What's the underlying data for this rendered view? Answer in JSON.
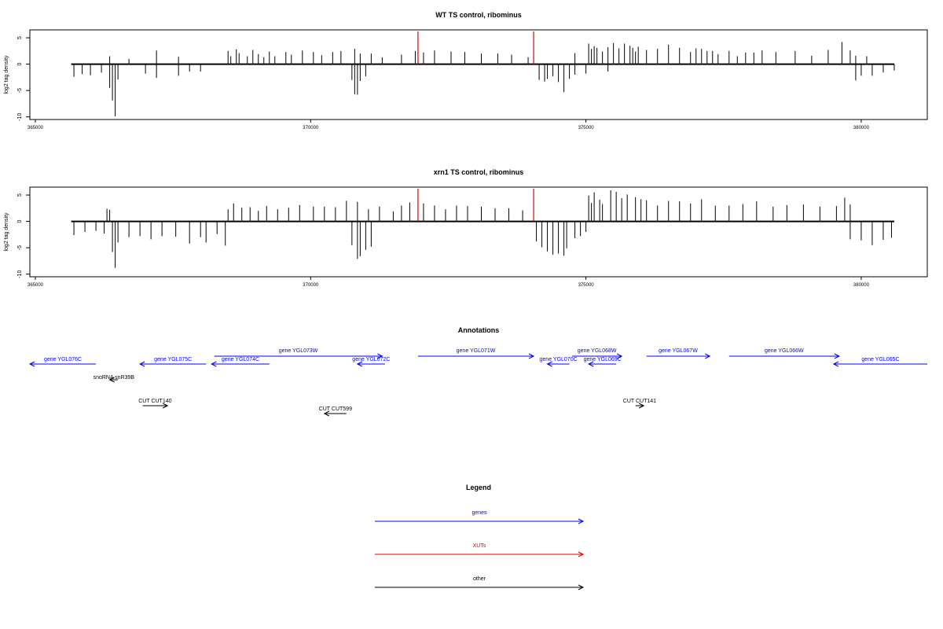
{
  "chart_data": [
    {
      "type": "bar",
      "title": "WT TS control, ribominus",
      "ylabel": "log2 tag density",
      "xlabel": "",
      "xlim": [
        364900,
        381200
      ],
      "ylim": [
        -10.5,
        6.5
      ],
      "x_ticks": [
        365000,
        370000,
        375000,
        380000
      ],
      "x_tick_labels": [
        "365000",
        "370000",
        "375000",
        "380000"
      ],
      "y_ticks": [
        5,
        0,
        -5,
        -10
      ],
      "y_tick_labels": [
        "5",
        "0",
        "-5",
        "-10"
      ],
      "baseline_range": [
        365650,
        380600
      ],
      "markers": {
        "color": "#e00000",
        "x": [
          371950,
          374050
        ],
        "height": 6.2
      },
      "colors": {
        "bars": "#000000",
        "markers": "#e00000"
      },
      "grid": false,
      "series": [
        {
          "strand": "plus",
          "x": [
            366350,
            366700,
            367200,
            367600,
            368500,
            368550,
            368650,
            368700,
            368850,
            368950,
            369050,
            369150,
            369250,
            369350,
            369550,
            369650,
            369850,
            370050,
            370200,
            370400,
            370550,
            370800,
            370900,
            371100,
            371300,
            371650,
            371900,
            372050,
            372250,
            372550,
            372800,
            373100,
            373400,
            373650,
            373950,
            374800,
            375050,
            375100,
            375150,
            375200,
            375300,
            375400,
            375500,
            375600,
            375700,
            375800,
            375850,
            375900,
            375950,
            376100,
            376300,
            376500,
            376700,
            376900,
            377000,
            377100,
            377200,
            377300,
            377400,
            377600,
            377750,
            377900,
            378050,
            378200,
            378450,
            378800,
            379100,
            379400,
            379650,
            379800,
            379900,
            380100
          ],
          "values": [
            1.5,
            1.0,
            2.6,
            1.4,
            2.5,
            1.5,
            2.8,
            2.1,
            1.5,
            2.7,
            1.9,
            1.3,
            2.4,
            1.5,
            2.3,
            1.8,
            2.6,
            2.3,
            1.7,
            2.3,
            2.5,
            2.9,
            2.0,
            2.0,
            1.3,
            1.8,
            2.5,
            2.2,
            2.6,
            2.4,
            2.3,
            2.0,
            2.0,
            1.8,
            1.3,
            2.1,
            3.9,
            2.9,
            3.4,
            3.1,
            2.4,
            3.2,
            4.0,
            3.0,
            3.9,
            3.5,
            3.1,
            2.4,
            3.3,
            2.7,
            2.9,
            3.7,
            3.1,
            2.3,
            3.0,
            2.9,
            2.5,
            2.5,
            1.9,
            2.5,
            1.5,
            2.2,
            2.2,
            2.6,
            2.3,
            2.5,
            1.6,
            2.7,
            4.2,
            2.6,
            1.6,
            1.5
          ]
        },
        {
          "strand": "minus",
          "x": [
            365700,
            365850,
            366000,
            366200,
            366350,
            366400,
            366450,
            366500,
            367000,
            367200,
            367600,
            367800,
            368000,
            370750,
            370800,
            370850,
            370900,
            371000,
            374150,
            374250,
            374300,
            374400,
            374500,
            374600,
            374700,
            374800,
            375000,
            375400,
            379900,
            380000,
            380200,
            380400,
            380600
          ],
          "values": [
            -2.4,
            -1.9,
            -2.1,
            -1.6,
            -4.5,
            -6.9,
            -9.9,
            -2.9,
            -1.8,
            -2.6,
            -2.2,
            -1.4,
            -1.4,
            -3.0,
            -5.7,
            -5.8,
            -3.2,
            -2.3,
            -3.0,
            -3.3,
            -2.8,
            -2.3,
            -3.4,
            -5.3,
            -2.8,
            -2.0,
            -1.8,
            -1.4,
            -3.1,
            -2.2,
            -2.2,
            -1.6,
            -1.2
          ]
        }
      ]
    },
    {
      "type": "bar",
      "title": "xrn1 TS control, ribominus",
      "ylabel": "log2 tag density",
      "xlabel": "",
      "xlim": [
        364900,
        381200
      ],
      "ylim": [
        -10.5,
        6.5
      ],
      "x_ticks": [
        365000,
        370000,
        375000,
        380000
      ],
      "x_tick_labels": [
        "365000",
        "370000",
        "375000",
        "380000"
      ],
      "y_ticks": [
        5,
        0,
        -5,
        -10
      ],
      "y_tick_labels": [
        "5",
        "0",
        "-5",
        "-10"
      ],
      "baseline_range": [
        365650,
        380600
      ],
      "markers": {
        "color": "#e00000",
        "x": [
          371950,
          374050
        ],
        "height": 6.2
      },
      "colors": {
        "bars": "#000000",
        "markers": "#e00000"
      },
      "grid": false,
      "series": [
        {
          "strand": "plus",
          "x": [
            366300,
            366350,
            368500,
            368600,
            368750,
            368900,
            369050,
            369200,
            369400,
            369600,
            369800,
            370050,
            370250,
            370450,
            370650,
            370850,
            371050,
            371250,
            371500,
            371650,
            371800,
            372050,
            372250,
            372450,
            372650,
            372850,
            373100,
            373350,
            373600,
            373850,
            375050,
            375100,
            375150,
            375250,
            375300,
            375450,
            375550,
            375650,
            375750,
            375900,
            376000,
            376100,
            376300,
            376500,
            376700,
            376900,
            377100,
            377350,
            377600,
            377850,
            378100,
            378400,
            378650,
            378950,
            379250,
            379550,
            379700,
            379800
          ],
          "values": [
            2.4,
            2.2,
            2.3,
            3.4,
            2.6,
            2.7,
            2.0,
            2.9,
            2.3,
            2.6,
            3.1,
            2.8,
            2.8,
            2.7,
            3.9,
            3.7,
            2.3,
            2.8,
            1.9,
            3.0,
            3.6,
            3.4,
            3.0,
            2.3,
            3.0,
            2.9,
            2.8,
            2.5,
            2.5,
            2.1,
            4.9,
            3.5,
            5.5,
            4.1,
            3.3,
            5.9,
            5.6,
            4.4,
            5.1,
            4.6,
            4.2,
            4.0,
            3.0,
            3.9,
            3.8,
            3.4,
            4.2,
            3.0,
            3.0,
            3.3,
            3.8,
            2.8,
            3.1,
            3.2,
            2.8,
            2.9,
            4.5,
            3.2
          ]
        },
        {
          "strand": "minus",
          "x": [
            365700,
            365900,
            366100,
            366250,
            366400,
            366450,
            366500,
            366700,
            366900,
            367100,
            367300,
            367550,
            367800,
            368000,
            368100,
            368300,
            368450,
            370750,
            370850,
            370900,
            371000,
            371100,
            374100,
            374200,
            374300,
            374400,
            374500,
            374600,
            374650,
            374800,
            374900,
            375000,
            379800,
            380000,
            380200,
            380400,
            380550
          ],
          "values": [
            -2.6,
            -2.0,
            -1.8,
            -2.3,
            -5.8,
            -8.8,
            -4.0,
            -3.0,
            -2.8,
            -3.4,
            -2.8,
            -2.9,
            -4.2,
            -3.0,
            -4.0,
            -2.4,
            -4.6,
            -4.5,
            -7.1,
            -6.6,
            -5.4,
            -4.8,
            -3.8,
            -4.9,
            -5.7,
            -6.3,
            -6.1,
            -6.5,
            -5.1,
            -3.2,
            -2.8,
            -2.0,
            -3.4,
            -3.6,
            -4.5,
            -3.5,
            -3.1
          ]
        }
      ]
    }
  ],
  "annotations": {
    "title": "Annotations",
    "items": [
      {
        "label": "gene YGL076C",
        "category": "gene",
        "strand": "minus",
        "start": 364900,
        "end": 366100,
        "row": 2
      },
      {
        "label": "gene YGL075C",
        "category": "gene",
        "strand": "minus",
        "start": 366900,
        "end": 368100,
        "row": 2
      },
      {
        "label": "gene YGL074C",
        "category": "gene",
        "strand": "minus",
        "start": 368200,
        "end": 369250,
        "row": 2
      },
      {
        "label": "gene YGL073W",
        "category": "gene",
        "strand": "plus",
        "start": 368250,
        "end": 371300,
        "row": 1
      },
      {
        "label": "gene YGL072C",
        "category": "gene",
        "strand": "minus",
        "start": 370850,
        "end": 371350,
        "row": 2
      },
      {
        "label": "gene YGL071W",
        "category": "gene",
        "strand": "plus",
        "start": 371950,
        "end": 374050,
        "row": 1
      },
      {
        "label": "gene YGL070C",
        "category": "gene",
        "strand": "minus",
        "start": 374300,
        "end": 374700,
        "row": 2
      },
      {
        "label": "gene YGL068W",
        "category": "gene",
        "strand": "plus",
        "start": 374750,
        "end": 375650,
        "row": 1
      },
      {
        "label": "gene YGL069C",
        "category": "gene",
        "strand": "minus",
        "start": 375050,
        "end": 375550,
        "row": 2
      },
      {
        "label": "gene YGL067W",
        "category": "gene",
        "strand": "plus",
        "start": 376100,
        "end": 377250,
        "row": 1
      },
      {
        "label": "gene YGL066W",
        "category": "gene",
        "strand": "plus",
        "start": 377600,
        "end": 379600,
        "row": 1
      },
      {
        "label": "gene YGL065C",
        "category": "gene",
        "strand": "minus",
        "start": 379500,
        "end": 381200,
        "row": 2
      },
      {
        "label": "snoRNA snR39B",
        "category": "other",
        "strand": "minus",
        "start": 366350,
        "end": 366500,
        "row": 3
      },
      {
        "label": "CUT CUT140",
        "category": "other",
        "strand": "plus",
        "start": 366950,
        "end": 367400,
        "row": 4
      },
      {
        "label": "CUT CUT599",
        "category": "other",
        "strand": "minus",
        "start": 370250,
        "end": 370650,
        "row": 5
      },
      {
        "label": "CUT CUT141",
        "category": "other",
        "strand": "plus",
        "start": 375900,
        "end": 376050,
        "row": 4
      }
    ]
  },
  "legend": {
    "title": "Legend",
    "entries": [
      {
        "label": "genes",
        "color": "#0000ff"
      },
      {
        "label": "XUTs",
        "color": "#e00000"
      },
      {
        "label": "other",
        "color": "#000000"
      }
    ]
  }
}
